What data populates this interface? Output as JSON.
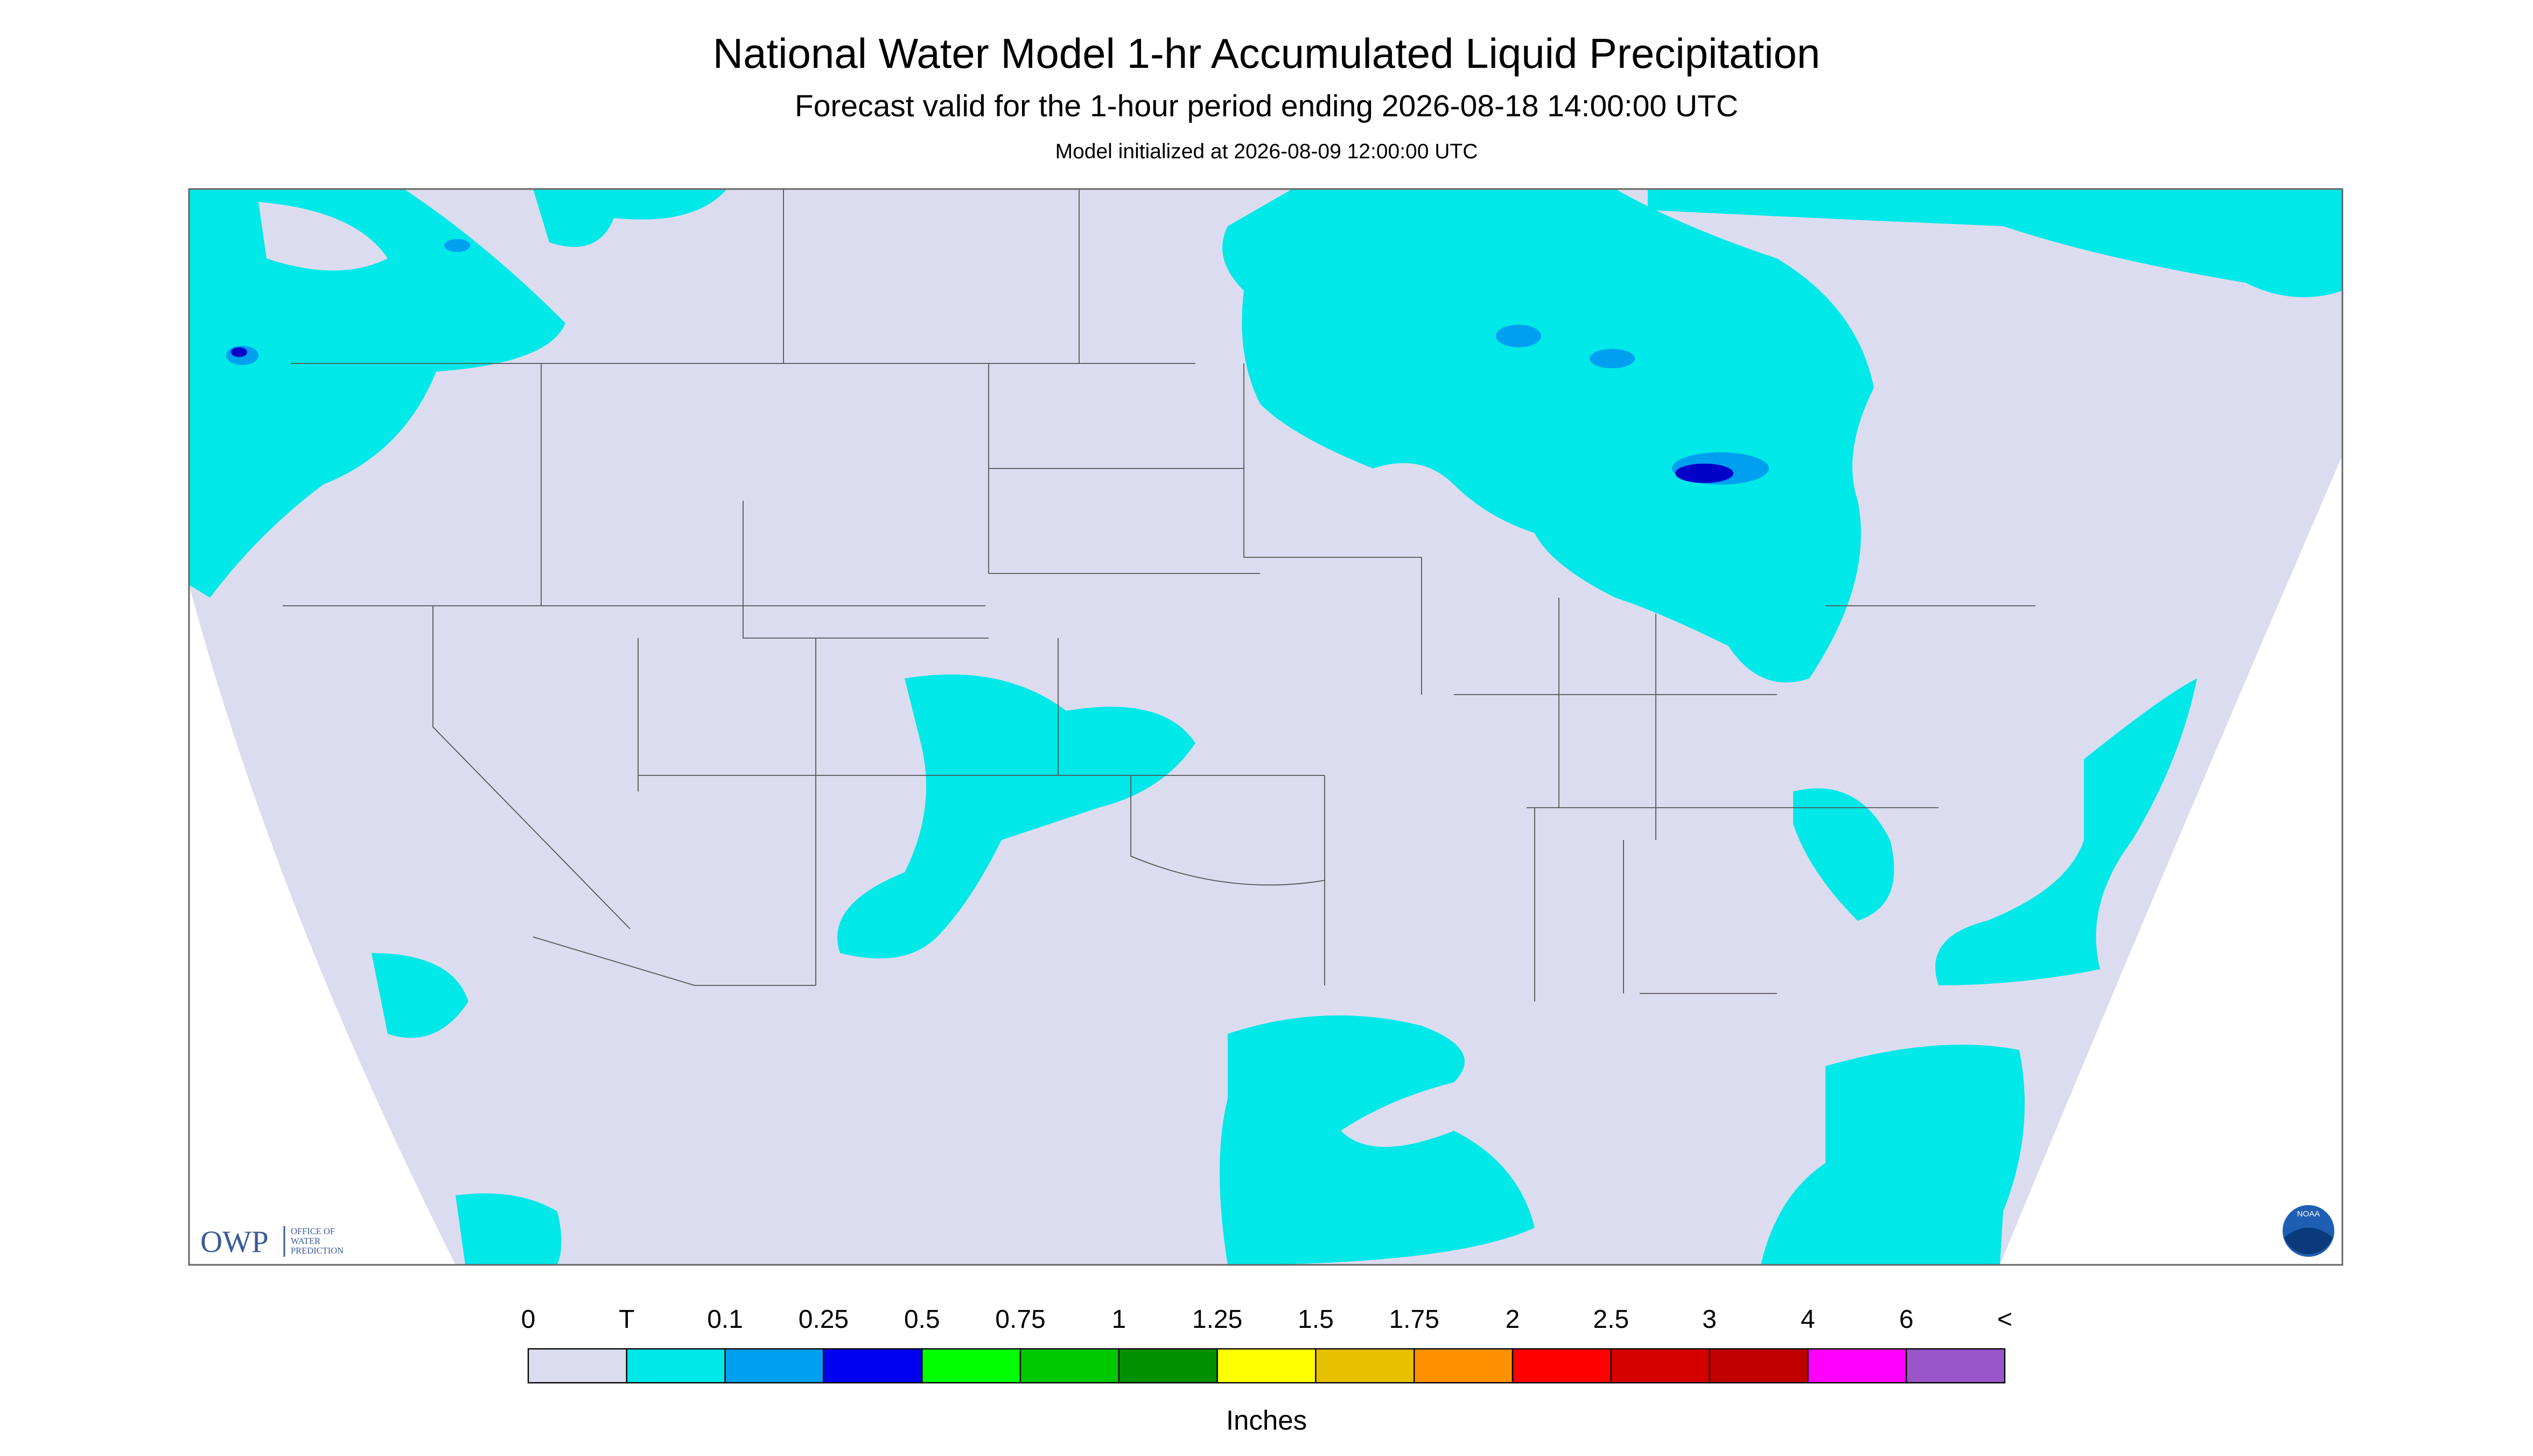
{
  "header": {
    "title": "National Water Model 1-hr Accumulated Liquid Precipitation",
    "subtitle": "Forecast valid for the 1-hour period ending 2026-08-18 14:00:00 UTC",
    "init": "Model initialized at 2026-08-09 12:00:00 UTC"
  },
  "logos": {
    "owp": "OWP",
    "owp_lines": [
      "OFFICE OF",
      "WATER",
      "PREDICTION"
    ],
    "noaa": "NOAA"
  },
  "legend": {
    "labels": [
      "0",
      "T",
      "0.1",
      "0.25",
      "0.5",
      "0.75",
      "1",
      "1.25",
      "1.5",
      "1.75",
      "2",
      "2.5",
      "3",
      "4",
      "6",
      "<"
    ],
    "colors": [
      "#dcdcf0",
      "#00e8e8",
      "#00a0f0",
      "#0000f0",
      "#00ff00",
      "#00c800",
      "#009000",
      "#ffff00",
      "#e7c000",
      "#ff9000",
      "#ff0000",
      "#d60000",
      "#c00000",
      "#ff00ff",
      "#9955c9"
    ],
    "unit": "Inches"
  }
}
